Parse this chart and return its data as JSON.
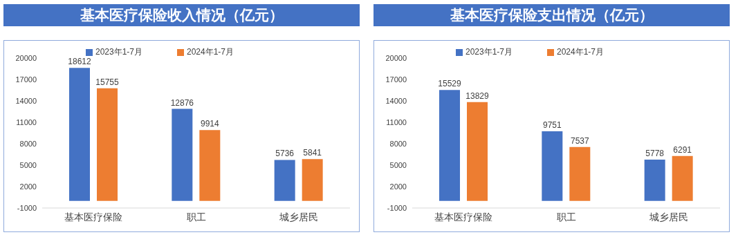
{
  "chart_data": [
    {
      "type": "bar",
      "title": "基本医疗保险收入情况（亿元）",
      "categories": [
        "基本医疗保险",
        "职工",
        "城乡居民"
      ],
      "series": [
        {
          "name": "2023年1-7月",
          "color": "#4472c4",
          "values": [
            18612,
            12876,
            5736
          ]
        },
        {
          "name": "2024年1-7月",
          "color": "#ed7d31",
          "values": [
            15755,
            9914,
            5841
          ]
        }
      ],
      "ylim": [
        -1000,
        20000
      ],
      "yticks": [
        -1000,
        2000,
        5000,
        8000,
        11000,
        14000,
        17000,
        20000
      ],
      "data_labels": true,
      "legend": "top",
      "grid": false
    },
    {
      "type": "bar",
      "title": "基本医疗保险支出情况（亿元）",
      "categories": [
        "基本医疗保险",
        "职工",
        "城乡居民"
      ],
      "series": [
        {
          "name": "2023年1-7月",
          "color": "#4472c4",
          "values": [
            15529,
            9751,
            5778
          ]
        },
        {
          "name": "2024年1-7月",
          "color": "#ed7d31",
          "values": [
            13829,
            7537,
            6291
          ]
        }
      ],
      "ylim": [
        -1000,
        20000
      ],
      "yticks": [
        -1000,
        2000,
        5000,
        8000,
        11000,
        14000,
        17000,
        20000
      ],
      "data_labels": true,
      "legend": "top",
      "grid": false
    }
  ]
}
